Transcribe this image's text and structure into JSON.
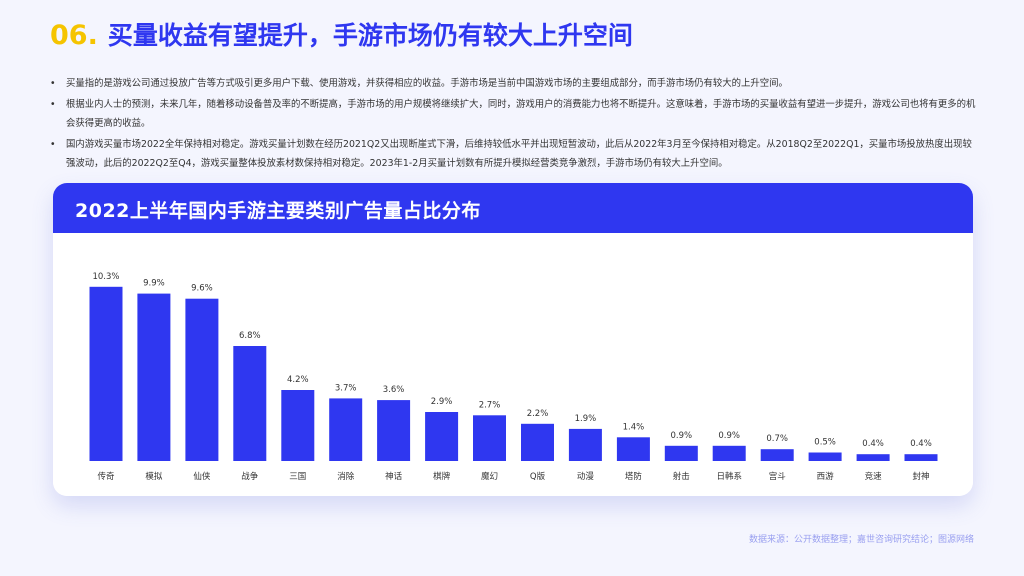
{
  "header": {
    "number": "06.",
    "title": "买量收益有望提升，手游市场仍有较大上升空间"
  },
  "bullets": [
    "买量指的是游戏公司通过投放广告等方式吸引更多用户下载、使用游戏，并获得相应的收益。手游市场是当前中国游戏市场的主要组成部分，而手游市场仍有较大的上升空间。",
    "根据业内人士的预测，未来几年，随着移动设备普及率的不断提高，手游市场的用户规模将继续扩大，同时，游戏用户的消费能力也将不断提升。这意味着，手游市场的买量收益有望进一步提升，游戏公司也将有更多的机会获得更高的收益。",
    "国内游戏买量市场2022全年保持相对稳定。游戏买量计划数在经历2021Q2又出现断崖式下滑，后维持较低水平并出现短暂波动，此后从2022年3月至今保持相对稳定。从2018Q2至2022Q1，买量市场投放热度出现较强波动，此后的2022Q2至Q4，游戏买量整体投放素材数保持相对稳定。2023年1-2月买量计划数有所提升模拟经营类竞争激烈，手游市场仍有较大上升空间。"
  ],
  "chart_data": {
    "type": "bar",
    "title": "2022上半年国内手游主要类别广告量占比分布",
    "categories": [
      "传奇",
      "模拟",
      "仙侠",
      "战争",
      "三国",
      "消除",
      "神话",
      "棋牌",
      "魔幻",
      "Q版",
      "动漫",
      "塔防",
      "射击",
      "日韩系",
      "宫斗",
      "西游",
      "竞速",
      "封神"
    ],
    "values": [
      10.3,
      9.9,
      9.6,
      6.8,
      4.2,
      3.7,
      3.6,
      2.9,
      2.7,
      2.2,
      1.9,
      1.4,
      0.9,
      0.9,
      0.7,
      0.5,
      0.4,
      0.4
    ],
    "labels": [
      "10.3%",
      "9.9%",
      "9.6%",
      "6.8%",
      "4.2%",
      "3.7%",
      "3.6%",
      "2.9%",
      "2.7%",
      "2.2%",
      "1.9%",
      "1.4%",
      "0.9%",
      "0.9%",
      "0.7%",
      "0.5%",
      "0.4%",
      "0.4%"
    ],
    "ylim": [
      0,
      11
    ],
    "grid": false,
    "legend": "none",
    "bar_color": "#2f37f0"
  },
  "source": "数据来源：公开数据整理；嘉世咨询研究结论；图源网络",
  "colors": {
    "accent": "#2f37f0",
    "number": "#f5c400",
    "background": "#f4f5fe"
  }
}
